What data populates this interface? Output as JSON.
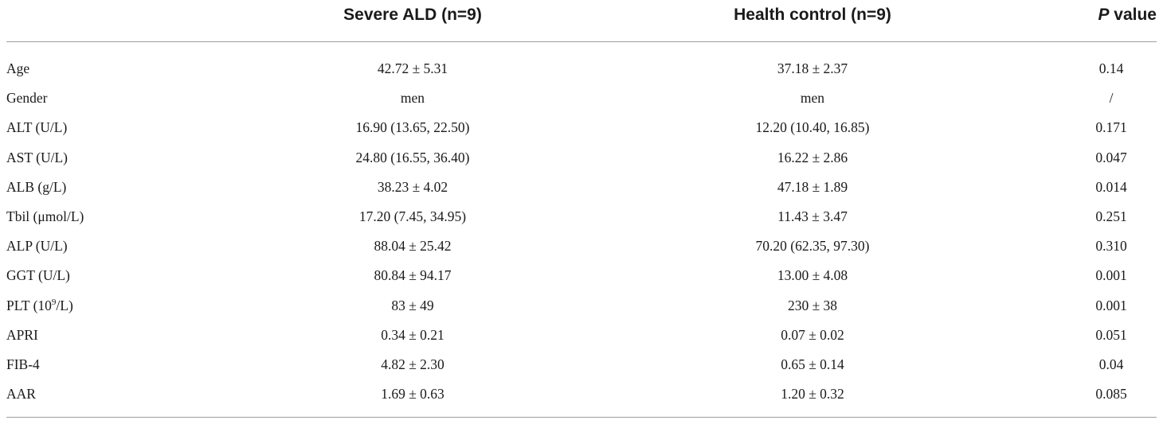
{
  "table": {
    "headers": {
      "col1": "Severe ALD (n=9)",
      "col2": "Health control (n=9)",
      "col3_italic": "P",
      "col3_rest": " value"
    },
    "rows": [
      {
        "label": "Age",
        "severe": "42.72 ± 5.31",
        "control": "37.18 ± 2.37",
        "p": "0.14"
      },
      {
        "label": "Gender",
        "severe": "men",
        "control": "men",
        "p": "/"
      },
      {
        "label": "ALT (U/L)",
        "severe": "16.90 (13.65, 22.50)",
        "control": "12.20 (10.40, 16.85)",
        "p": "0.171"
      },
      {
        "label": "AST (U/L)",
        "severe": "24.80 (16.55, 36.40)",
        "control": "16.22 ± 2.86",
        "p": "0.047"
      },
      {
        "label": "ALB (g/L)",
        "severe": "38.23 ± 4.02",
        "control": "47.18 ± 1.89",
        "p": "0.014"
      },
      {
        "label": "Tbil (μmol/L)",
        "severe": "17.20 (7.45, 34.95)",
        "control": "11.43 ± 3.47",
        "p": "0.251"
      },
      {
        "label": "ALP (U/L)",
        "severe": "88.04 ± 25.42",
        "control": "70.20 (62.35, 97.30)",
        "p": "0.310"
      },
      {
        "label": "GGT (U/L)",
        "severe": "80.84 ± 94.17",
        "control": "13.00 ± 4.08",
        "p": "0.001"
      },
      {
        "label_pre": "PLT (10",
        "label_sup": "9",
        "label_post": "/L)",
        "severe": "83 ± 49",
        "control": "230 ± 38",
        "p": "0.001"
      },
      {
        "label": "APRI",
        "severe": "0.34 ± 0.21",
        "control": "0.07 ± 0.02",
        "p": "0.051"
      },
      {
        "label": "FIB-4",
        "severe": "4.82 ± 2.30",
        "control": "0.65 ± 0.14",
        "p": "0.04"
      },
      {
        "label": "AAR",
        "severe": "1.69 ± 0.63",
        "control": "1.20 ± 0.32",
        "p": "0.085"
      }
    ]
  }
}
